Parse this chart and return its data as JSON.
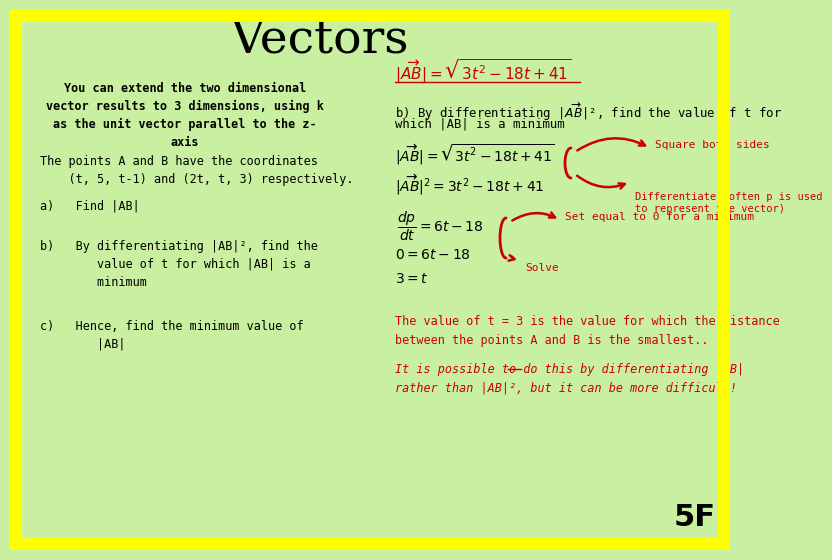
{
  "title": "Vectors",
  "bg_color": "#c8f0a0",
  "border_color": "#ffff00",
  "border_width": 10,
  "title_color": "#000000",
  "title_fontsize": 34,
  "left_intro_text": "You can extend the two dimensional\nvector results to 3 dimensions, using k\nas the unit vector parallel to the z-\naxis",
  "left_points_text": "The points A and B have the coordinates\n    (t, 5, t-1) and (2t, t, 3) respectively.",
  "left_a_label": "a)   Find |AB|",
  "left_b1": "b)   By differentiating |AB|², find the",
  "left_b2": "        value of t for which |AB| is a",
  "left_b3": "        minimum",
  "left_c1": "c)   Hence, find the minimum value of",
  "left_c2": "        |AB|",
  "formula_top_color": "#cc0000",
  "partb_line1": "b) By differentiating |AB|², find the value of t for",
  "partb_line2": "which |AB| is a minimum",
  "annot1": "Square both sides",
  "annot2": "Differentiate (often p is used\nto represent the vector)",
  "annot3": "Set equal to 0 for a minimum",
  "annot4": "Solve",
  "annot_color": "#cc0000",
  "summary_line1": "The value of t = 3 is the value for which the distance",
  "summary_line2": "between the points A and B is the smallest..",
  "summary_color": "#cc0000",
  "italic_line1": "It is possible to do this by differentiating |AB|",
  "italic_line2": "rather than |AB|², but it can be more difficult!",
  "italic_color": "#cc0000",
  "page_num": "5F",
  "page_color": "#000000",
  "math_color": "#000000",
  "text_color": "#000000"
}
